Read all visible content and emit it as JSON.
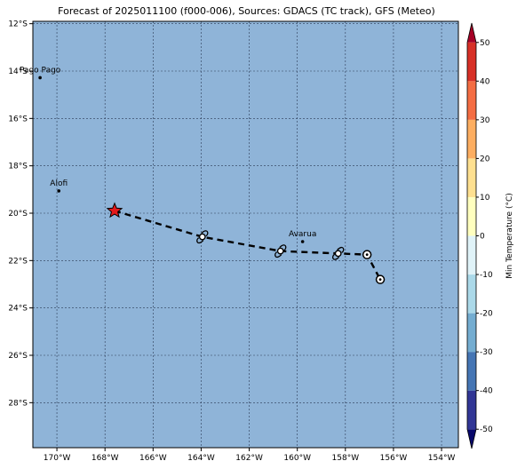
{
  "map": {
    "title": "Forecast of 2025011100 (f000-006), Sources: GDACS (TC track), GFS (Meteo)",
    "ocean_color": "#8fb4d8",
    "lon_range": [
      -171,
      -153.3
    ],
    "lat_range": [
      -29.9,
      -11.9
    ],
    "lon_ticks": [
      {
        "value": -170,
        "label": "170°W"
      },
      {
        "value": -168,
        "label": "168°W"
      },
      {
        "value": -166,
        "label": "166°W"
      },
      {
        "value": -164,
        "label": "164°W"
      },
      {
        "value": -162,
        "label": "162°W"
      },
      {
        "value": -160,
        "label": "160°W"
      },
      {
        "value": -158,
        "label": "158°W"
      },
      {
        "value": -156,
        "label": "156°W"
      },
      {
        "value": -154,
        "label": "154°W"
      }
    ],
    "lat_ticks": [
      {
        "value": -12,
        "label": "12°S"
      },
      {
        "value": -14,
        "label": "14°S"
      },
      {
        "value": -16,
        "label": "16°S"
      },
      {
        "value": -18,
        "label": "18°S"
      },
      {
        "value": -20,
        "label": "20°S"
      },
      {
        "value": -22,
        "label": "22°S"
      },
      {
        "value": -24,
        "label": "24°S"
      },
      {
        "value": -26,
        "label": "26°S"
      },
      {
        "value": -28,
        "label": "28°S"
      }
    ],
    "places": [
      {
        "name": "Pago Pago",
        "lon": -170.7,
        "lat": -14.28
      },
      {
        "name": "Alofi",
        "lon": -169.92,
        "lat": -19.06
      },
      {
        "name": "Avarua",
        "lon": -159.78,
        "lat": -21.2
      }
    ],
    "track": [
      {
        "lon": -167.6,
        "lat": -19.9,
        "marker": "star",
        "color": "#e41a1c"
      },
      {
        "lon": -163.95,
        "lat": -21.0,
        "marker": "storm"
      },
      {
        "lon": -160.7,
        "lat": -21.6,
        "marker": "storm"
      },
      {
        "lon": -158.3,
        "lat": -21.7,
        "marker": "storm"
      },
      {
        "lon": -157.1,
        "lat": -21.75,
        "marker": "circle"
      },
      {
        "lon": -156.55,
        "lat": -22.8,
        "marker": "circle"
      }
    ]
  },
  "colorbar": {
    "label": "Min Temperature (°C)",
    "min": -55,
    "max": 55,
    "ticks": [
      50,
      40,
      30,
      20,
      10,
      0,
      -10,
      -20,
      -30,
      -40,
      -50
    ],
    "bands": [
      {
        "from": -50,
        "to": -40,
        "color": "#313695"
      },
      {
        "from": -40,
        "to": -30,
        "color": "#4575b4"
      },
      {
        "from": -30,
        "to": -20,
        "color": "#74add1"
      },
      {
        "from": -20,
        "to": -10,
        "color": "#abd9e9"
      },
      {
        "from": -10,
        "to": 0,
        "color": "#e0f3f8"
      },
      {
        "from": 0,
        "to": 10,
        "color": "#ffffbf"
      },
      {
        "from": 10,
        "to": 20,
        "color": "#fee090"
      },
      {
        "from": 20,
        "to": 30,
        "color": "#fdae61"
      },
      {
        "from": 30,
        "to": 40,
        "color": "#f46d43"
      },
      {
        "from": 40,
        "to": 50,
        "color": "#d73027"
      }
    ],
    "extend_low_color": "#08086b",
    "extend_high_color": "#a50026"
  }
}
